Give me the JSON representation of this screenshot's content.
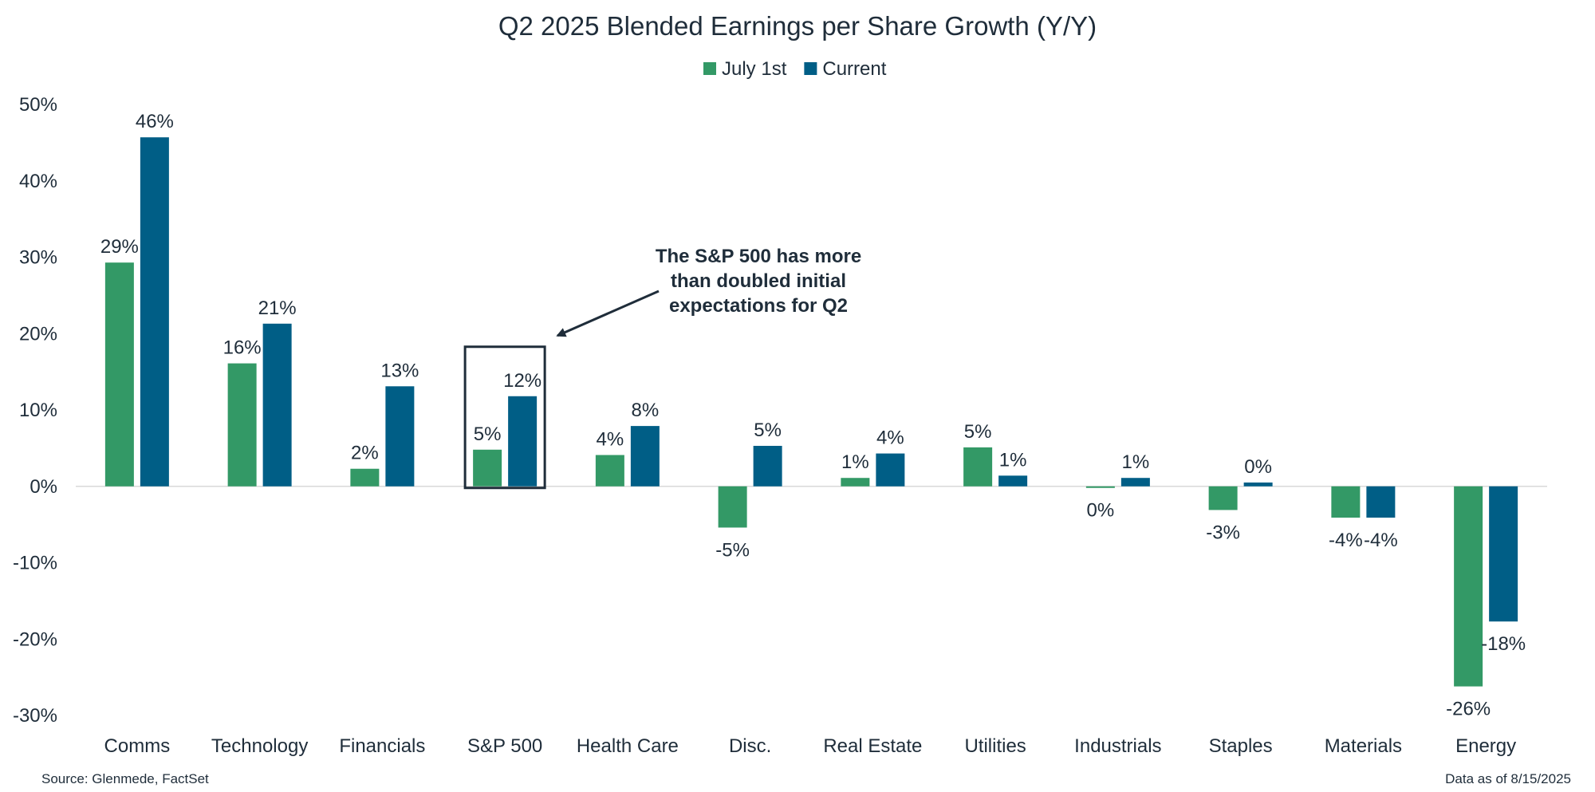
{
  "chart_data": {
    "type": "bar",
    "title": "Q2 2025 Blended Earnings per Share Growth (Y/Y)",
    "xlabel": "",
    "ylabel": "",
    "ylim": [
      -30,
      50
    ],
    "yticks": [
      50,
      40,
      30,
      20,
      10,
      0,
      -10,
      -20,
      -30
    ],
    "ytick_labels": [
      "50%",
      "40%",
      "30%",
      "20%",
      "10%",
      "0%",
      "-10%",
      "-20%",
      "-30%"
    ],
    "legend_position": "top-center",
    "grid": false,
    "categories": [
      "Comms",
      "Technology",
      "Financials",
      "S&P 500",
      "Health Care",
      "Disc.",
      "Real Estate",
      "Utilities",
      "Industrials",
      "Staples",
      "Materials",
      "Energy"
    ],
    "series": [
      {
        "name": "July 1st",
        "color": "#339966",
        "values": [
          29.3,
          16.1,
          2.3,
          4.8,
          4.1,
          -5.4,
          1.1,
          5.1,
          -0.2,
          -3.1,
          -4.1,
          -26.2
        ],
        "labels": [
          "29%",
          "16%",
          "2%",
          "5%",
          "4%",
          "-5%",
          "1%",
          "5%",
          "0%",
          "-3%",
          "-4%",
          "-26%"
        ]
      },
      {
        "name": "Current",
        "color": "#005e86",
        "values": [
          45.7,
          21.3,
          13.1,
          11.8,
          7.9,
          5.3,
          4.3,
          1.4,
          1.1,
          0.5,
          -4.1,
          -17.7
        ],
        "labels": [
          "46%",
          "21%",
          "13%",
          "12%",
          "8%",
          "5%",
          "4%",
          "1%",
          "1%",
          "0%",
          "-4%",
          "-18%"
        ]
      }
    ],
    "annotation": {
      "lines": [
        "The S&P 500 has more",
        "than doubled initial",
        "expectations for Q2"
      ],
      "highlight_category": "S&P 500"
    }
  },
  "footer": {
    "source": "Source: Glenmede, FactSet",
    "as_of": "Data as of 8/15/2025"
  }
}
